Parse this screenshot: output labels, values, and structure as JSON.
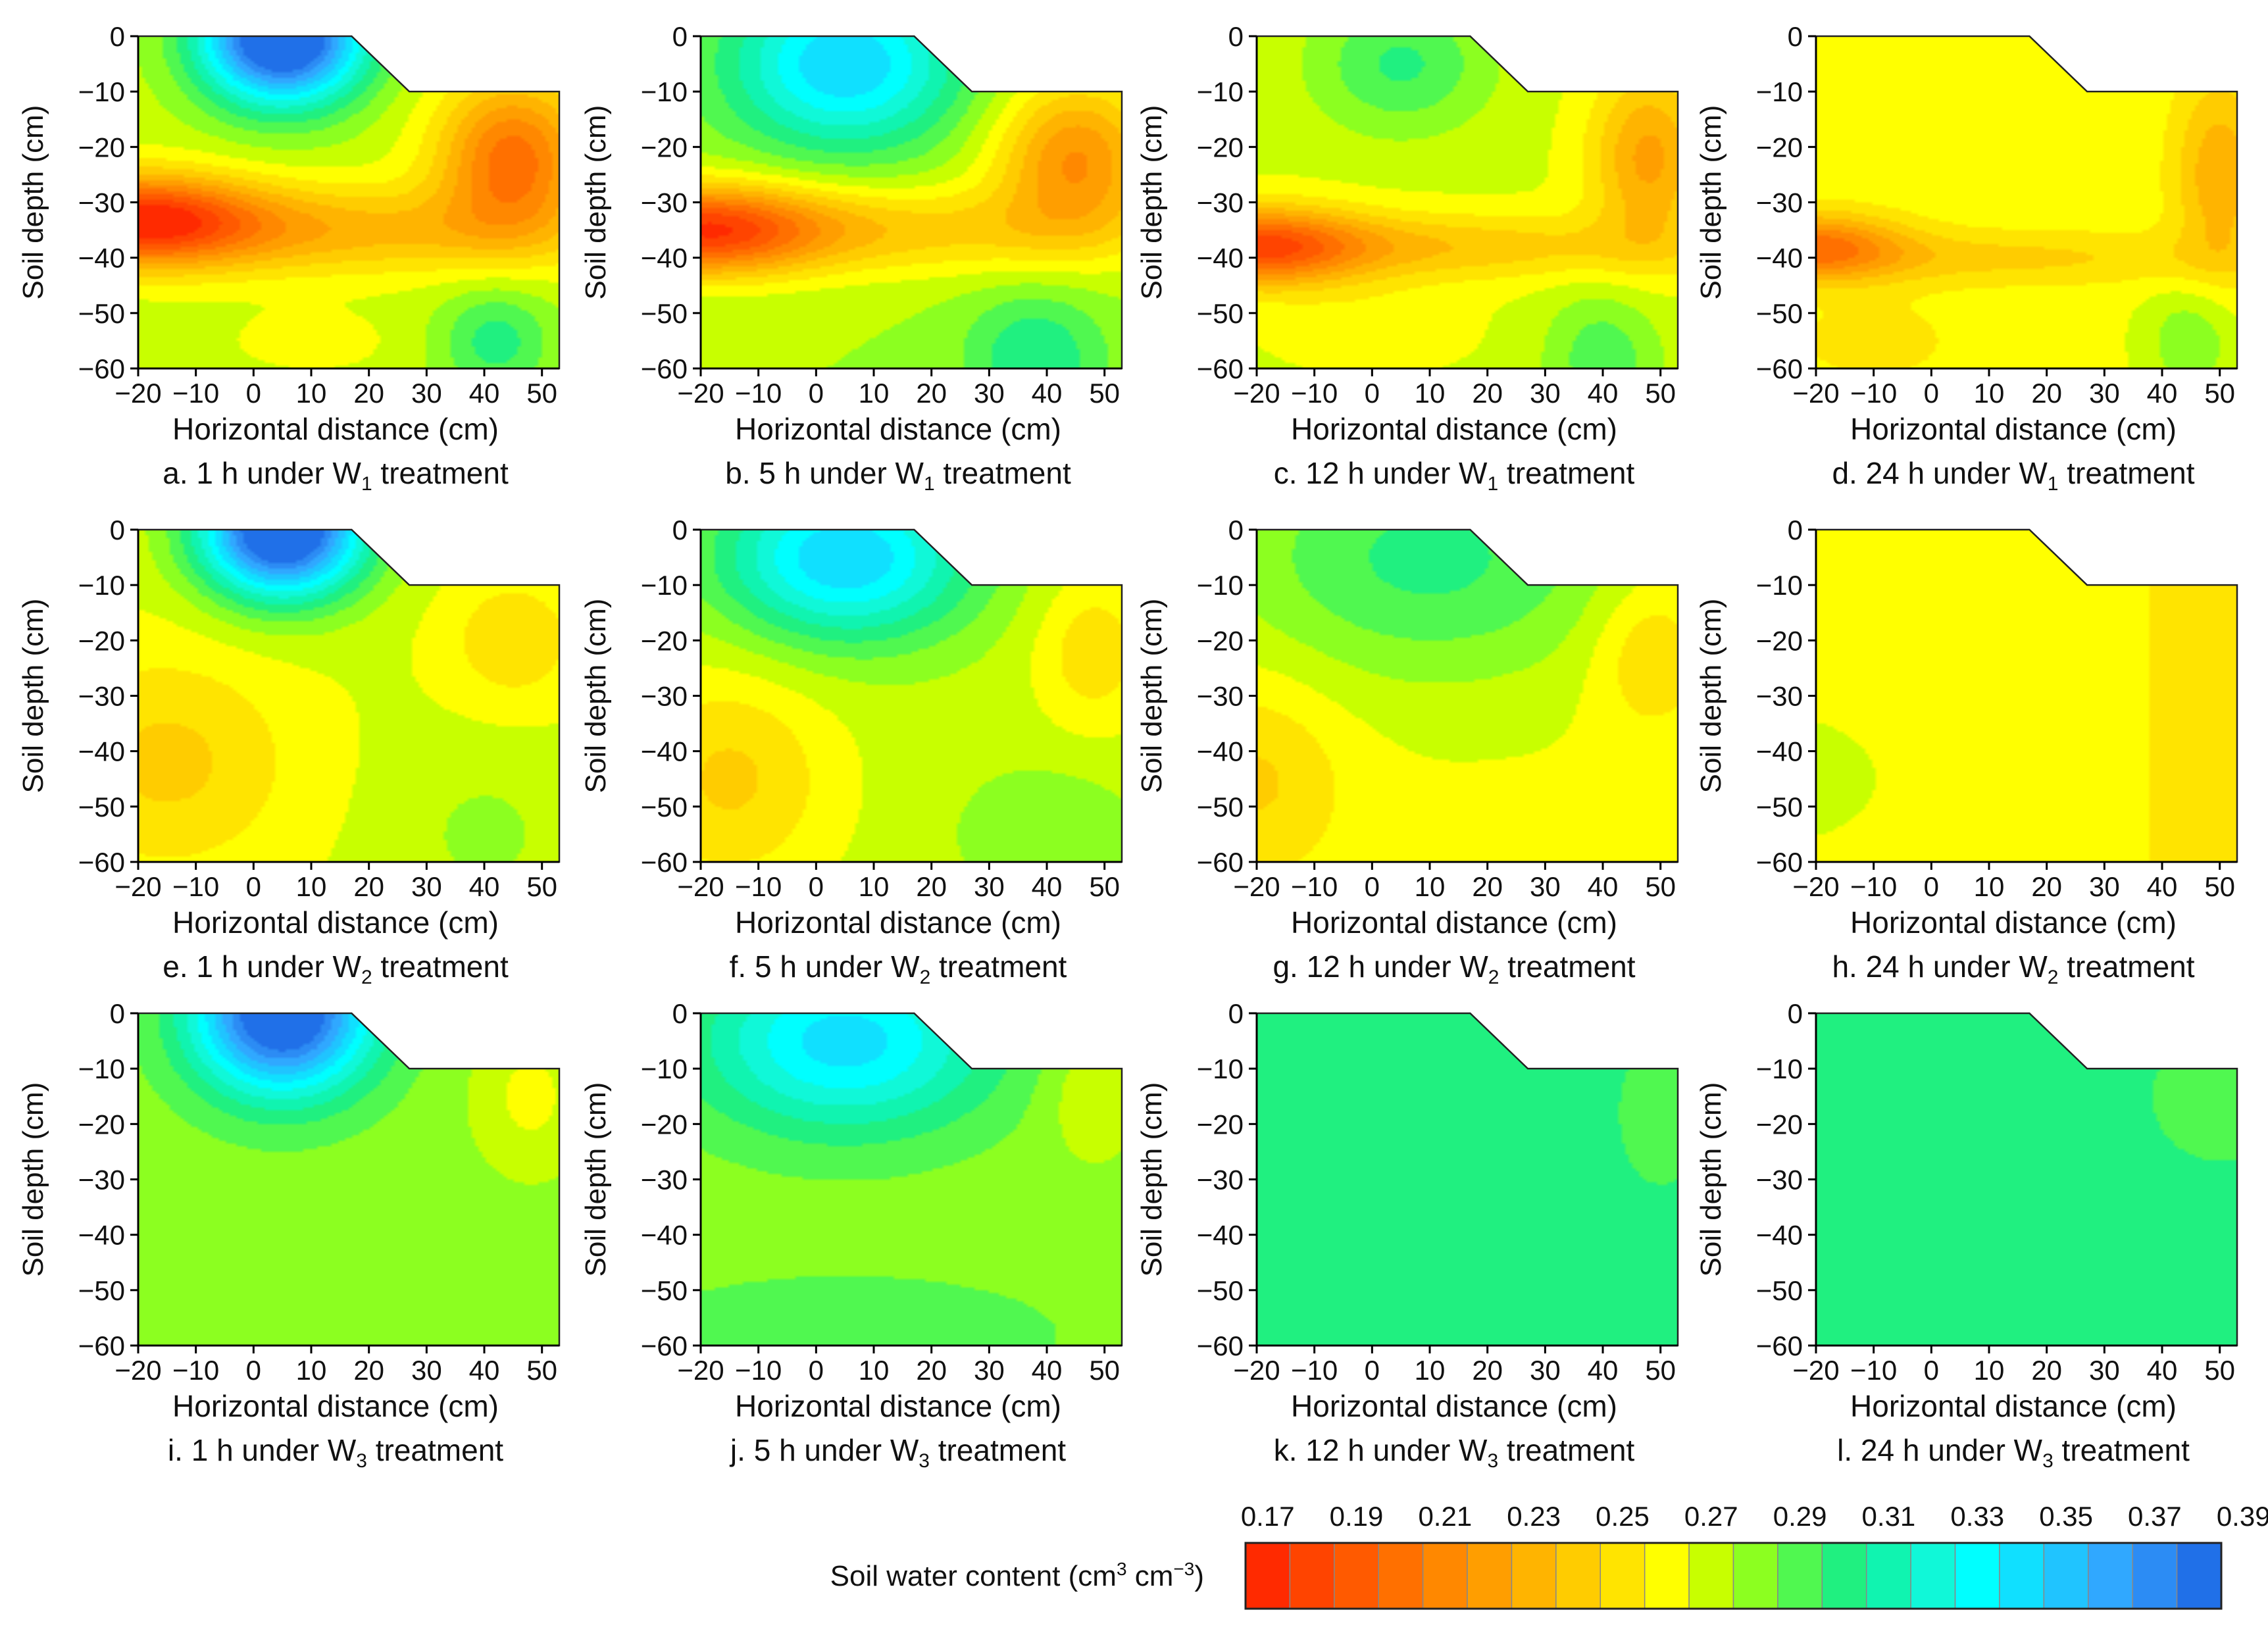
{
  "figure": {
    "panels": [
      {
        "id": "a",
        "caption_pre": "a. 1 h under W",
        "sub": "1",
        "caption_post": " treatment"
      },
      {
        "id": "b",
        "caption_pre": "b. 5 h under W",
        "sub": "1",
        "caption_post": " treatment"
      },
      {
        "id": "c",
        "caption_pre": "c. 12 h under W",
        "sub": "1",
        "caption_post": " treatment"
      },
      {
        "id": "d",
        "caption_pre": "d. 24 h under W",
        "sub": "1",
        "caption_post": " treatment"
      },
      {
        "id": "e",
        "caption_pre": "e. 1 h under W",
        "sub": "2",
        "caption_post": " treatment"
      },
      {
        "id": "f",
        "caption_pre": "f. 5 h under W",
        "sub": "2",
        "caption_post": " treatment"
      },
      {
        "id": "g",
        "caption_pre": "g. 12 h under W",
        "sub": "2",
        "caption_post": " treatment"
      },
      {
        "id": "h",
        "caption_pre": "h. 24 h under W",
        "sub": "2",
        "caption_post": " treatment"
      },
      {
        "id": "i",
        "caption_pre": "i. 1 h under W",
        "sub": "3",
        "caption_post": " treatment"
      },
      {
        "id": "j",
        "caption_pre": "j. 5 h under W",
        "sub": "3",
        "caption_post": " treatment"
      },
      {
        "id": "k",
        "caption_pre": "k. 12 h under W",
        "sub": "3",
        "caption_post": " treatment"
      },
      {
        "id": "l",
        "caption_pre": "l. 24 h under W",
        "sub": "3",
        "caption_post": " treatment"
      }
    ]
  },
  "chart_data": {
    "type": "heatmap",
    "subtype": "filled contour, 12 panels (4 times x 3 treatments)",
    "xlabel": "Horizontal distance (cm)",
    "ylabel": "Soil depth (cm)",
    "xticks": [
      -20,
      -10,
      0,
      10,
      20,
      30,
      40,
      50
    ],
    "yticks": [
      0,
      -10,
      -20,
      -30,
      -40,
      -50,
      -60
    ],
    "xtick_labels": [
      "−20",
      "−10",
      "0",
      "10",
      "20",
      "30",
      "40",
      "50"
    ],
    "ytick_labels": [
      "0",
      "−10",
      "−20",
      "−30",
      "−40",
      "−50",
      "−60"
    ],
    "xlim": [
      -20,
      53
    ],
    "ylim": [
      -60,
      0
    ],
    "domain_outline_cm": [
      [
        -20,
        0
      ],
      [
        17,
        0
      ],
      [
        27,
        -10
      ],
      [
        53,
        -10
      ],
      [
        53,
        -60
      ],
      [
        -20,
        -60
      ]
    ],
    "colorbar": {
      "label_pre": "Soil water content (cm",
      "label_sup1": "3",
      "label_mid": " cm",
      "label_sup2": "−3",
      "label_post": ")",
      "tick_labels": [
        "0.17",
        "0.19",
        "0.21",
        "0.23",
        "0.25",
        "0.27",
        "0.29",
        "0.31",
        "0.33",
        "0.35",
        "0.37",
        "0.39"
      ],
      "levels_min": 0.17,
      "levels_step": 0.01,
      "colors": [
        "#ff2a00",
        "#ff4400",
        "#ff5a00",
        "#ff7000",
        "#ff8800",
        "#ff9e00",
        "#ffb400",
        "#ffcc00",
        "#ffe400",
        "#ffff00",
        "#c8ff00",
        "#8cff20",
        "#50f850",
        "#20f080",
        "#10f4b0",
        "#10f8d8",
        "#00ffff",
        "#10e0ff",
        "#20c4ff",
        "#30a8ff",
        "#2c8cf4",
        "#2070e8"
      ]
    },
    "panels": [
      {
        "id": "a",
        "hours": 1,
        "treatment": "W1"
      },
      {
        "id": "b",
        "hours": 5,
        "treatment": "W1"
      },
      {
        "id": "c",
        "hours": 12,
        "treatment": "W1"
      },
      {
        "id": "d",
        "hours": 24,
        "treatment": "W1"
      },
      {
        "id": "e",
        "hours": 1,
        "treatment": "W2"
      },
      {
        "id": "f",
        "hours": 5,
        "treatment": "W2"
      },
      {
        "id": "g",
        "hours": 12,
        "treatment": "W2"
      },
      {
        "id": "h",
        "hours": 24,
        "treatment": "W2"
      },
      {
        "id": "i",
        "hours": 1,
        "treatment": "W3"
      },
      {
        "id": "j",
        "hours": 5,
        "treatment": "W3"
      },
      {
        "id": "k",
        "hours": 12,
        "treatment": "W3"
      },
      {
        "id": "l",
        "hours": 24,
        "treatment": "W3"
      }
    ]
  }
}
